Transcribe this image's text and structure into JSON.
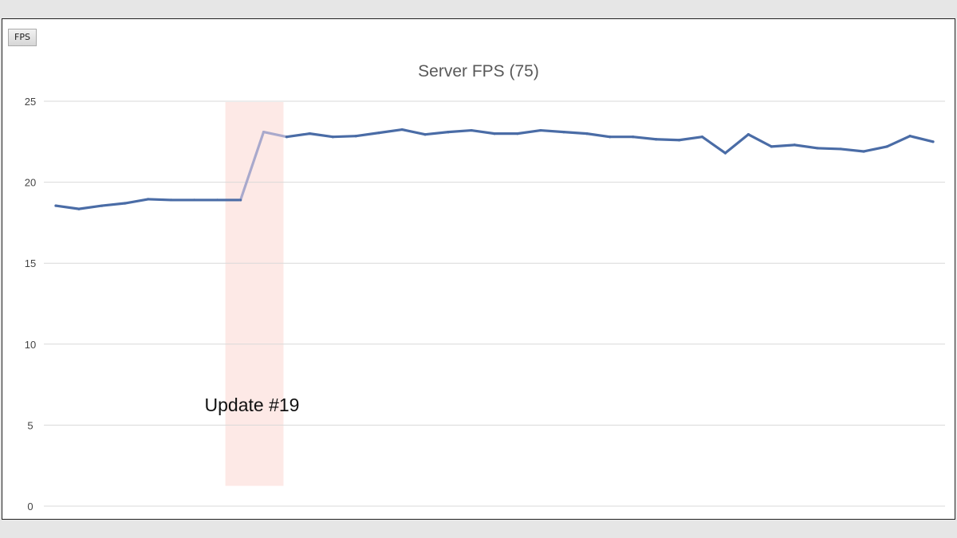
{
  "toolbar": {
    "fps_label": "FPS"
  },
  "chart_data": {
    "type": "line",
    "title": "Server FPS (75)",
    "xlabel": "",
    "ylabel": "",
    "ylim": [
      0,
      25
    ],
    "yticks": [
      0,
      5,
      10,
      15,
      20,
      25
    ],
    "grid": true,
    "series": [
      {
        "values": [
          18.55,
          18.35,
          18.55,
          18.7,
          18.95,
          18.9,
          18.9,
          18.9,
          18.9,
          23.1,
          22.8,
          23.0,
          22.8,
          22.85,
          23.05,
          23.25,
          22.95,
          23.1,
          23.2,
          23.0,
          23.0,
          23.2,
          23.1,
          23.0,
          22.8,
          22.8,
          22.65,
          22.6,
          22.8,
          21.8,
          22.95,
          22.2,
          22.3,
          22.1,
          22.05,
          21.9,
          22.2,
          22.85,
          22.5
        ]
      }
    ],
    "annotation": {
      "text": "Update #19",
      "highlight_points": [
        8,
        10
      ]
    },
    "colors": {
      "line": "#4a6ca6",
      "highlight_line": "#a9a9cc",
      "band": "#fde9e6",
      "grid": "#d9d9d9"
    }
  }
}
